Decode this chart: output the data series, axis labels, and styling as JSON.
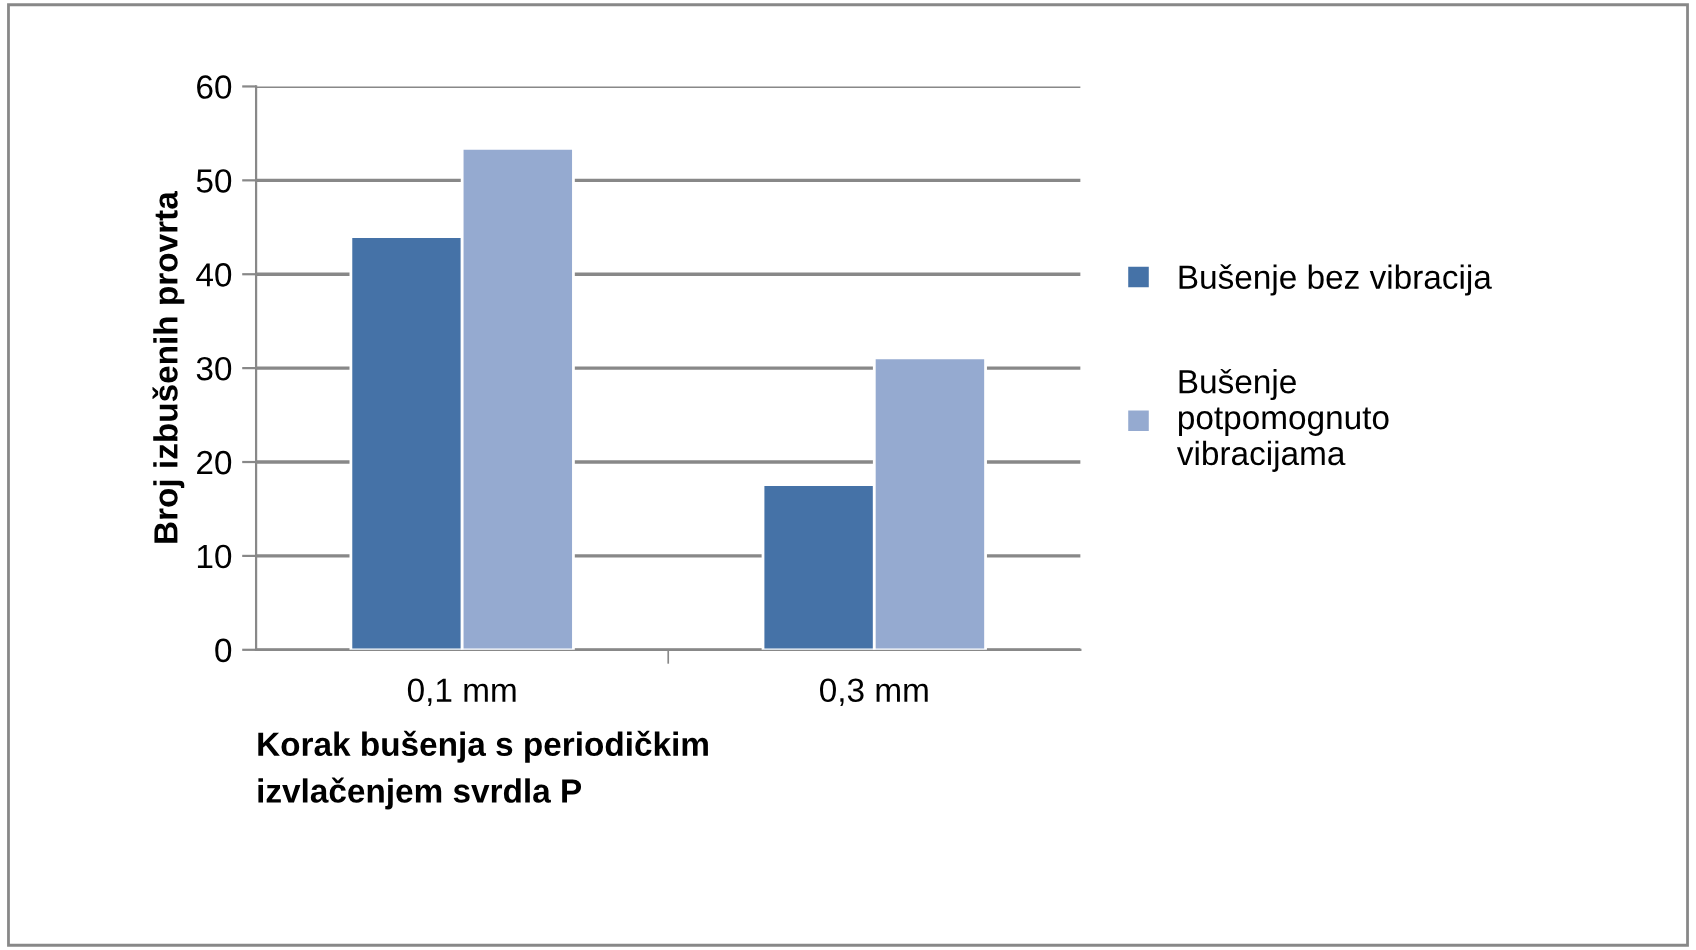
{
  "chart_data": {
    "type": "bar",
    "xlabel": "Korak bušenja s periodičkim\nizvlačenjem svrdla P",
    "ylabel": "Broj izbušenih provrta",
    "categories": [
      "0,1 mm",
      "0,3 mm"
    ],
    "series": [
      {
        "name": "Bušenje bez vibracija",
        "color": "#4572a7",
        "values": [
          44,
          17.6
        ]
      },
      {
        "name": "Bušenje\npotpomognuto\nvibracijama",
        "color": "#95aad0",
        "values": [
          53.4,
          31.1
        ]
      }
    ],
    "ylim": [
      0,
      60
    ],
    "yticks": [
      0,
      10,
      20,
      30,
      40,
      50,
      60
    ],
    "grid": "y",
    "legend": "right"
  }
}
